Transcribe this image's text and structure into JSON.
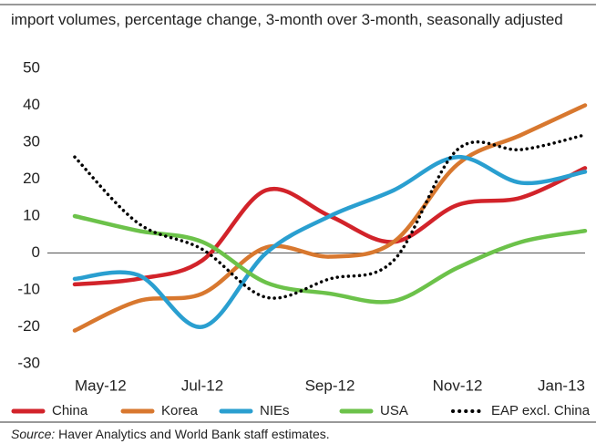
{
  "chart_data": {
    "type": "line",
    "title": "import volumes, percentage change, 3-month over 3-month, seasonally adjusted",
    "categories": [
      "May-12",
      null,
      "Jul-12",
      null,
      "Sep-12",
      null,
      "Nov-12",
      null,
      "Jan-13"
    ],
    "series": [
      {
        "name": "China",
        "color": "#d2232a",
        "values": [
          -8.5,
          -7,
          -2,
          17,
          10,
          3,
          13,
          15,
          23
        ]
      },
      {
        "name": "Korea",
        "color": "#d8782f",
        "values": [
          -21,
          -13,
          -11,
          1.5,
          -1,
          3,
          24,
          32,
          40
        ]
      },
      {
        "name": "NIEs",
        "color": "#2a9fd0",
        "values": [
          -7,
          -6,
          -20,
          0,
          10,
          17,
          26,
          19,
          22
        ]
      },
      {
        "name": "USA",
        "color": "#6cc24a",
        "values": [
          10,
          6,
          3,
          -8,
          -11,
          -13,
          -4,
          3,
          6
        ]
      },
      {
        "name": "EAP excl. China",
        "color": "#000000",
        "dash": true,
        "values": [
          26,
          8,
          1,
          -12,
          -7,
          -2,
          28,
          28,
          32
        ]
      }
    ],
    "ylim": [
      -30,
      50
    ],
    "yticks": [
      -30,
      -20,
      -10,
      0,
      10,
      20,
      30,
      40,
      50
    ],
    "legend": "bottom",
    "source_label": "Source:",
    "source": "Haver Analytics and World Bank staff estimates."
  }
}
